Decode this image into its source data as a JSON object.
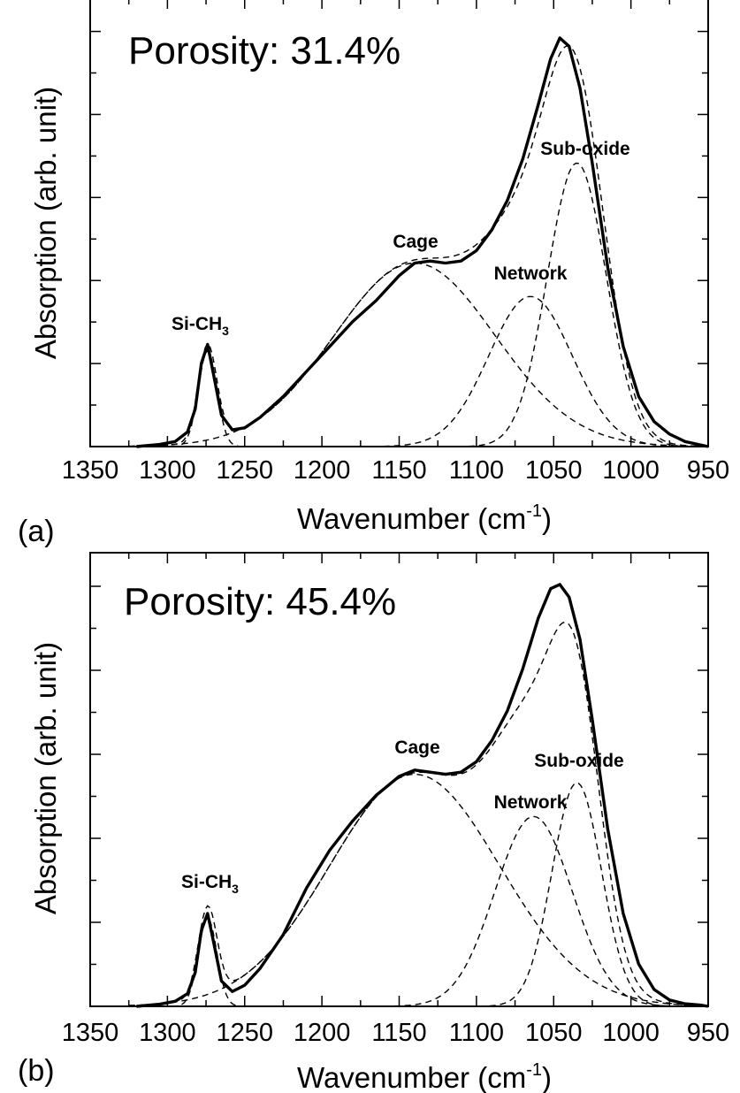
{
  "chart_data": [
    {
      "type": "line",
      "panel_label": "(a)",
      "annotation": "Porosity: 31.4%",
      "xlabel": "Wavenumber (cm",
      "xlabel_sup": "-1",
      "xlabel_close": ")",
      "ylabel": "Absorption (arb. unit)",
      "xlim": [
        1350,
        950
      ],
      "x_reversed": true,
      "x_ticks": [
        1350,
        1300,
        1250,
        1200,
        1150,
        1100,
        1050,
        1000,
        950
      ],
      "ylim": [
        0,
        1
      ],
      "peaks": {
        "si_ch3": {
          "label": "Si-CH",
          "sub": "3",
          "center": 1274,
          "height": 0.245
        },
        "cage": {
          "label": "Cage",
          "center": 1140,
          "height": 0.44
        },
        "network": {
          "label": "Network",
          "center": 1065,
          "height": 0.36
        },
        "sub_oxide": {
          "label": "Sub-oxide",
          "center": 1035,
          "height": 0.68
        }
      },
      "series": [
        {
          "name": "measured",
          "x": [
            1320,
            1305,
            1295,
            1287,
            1282,
            1278,
            1274,
            1270,
            1265,
            1258,
            1250,
            1240,
            1225,
            1210,
            1195,
            1180,
            1165,
            1150,
            1140,
            1130,
            1120,
            1110,
            1100,
            1090,
            1080,
            1070,
            1060,
            1052,
            1046,
            1040,
            1033,
            1025,
            1015,
            1005,
            995,
            985,
            975,
            965,
            955,
            950
          ],
          "y": [
            0.0,
            0.005,
            0.012,
            0.035,
            0.09,
            0.2,
            0.245,
            0.17,
            0.075,
            0.04,
            0.045,
            0.07,
            0.12,
            0.18,
            0.24,
            0.3,
            0.35,
            0.41,
            0.44,
            0.445,
            0.44,
            0.445,
            0.47,
            0.52,
            0.59,
            0.69,
            0.82,
            0.93,
            0.98,
            0.96,
            0.86,
            0.68,
            0.43,
            0.24,
            0.12,
            0.06,
            0.03,
            0.012,
            0.004,
            0.0
          ]
        },
        {
          "name": "Si-CH3",
          "center": 1274,
          "width": 6,
          "amplitude": 0.23
        },
        {
          "name": "Cage",
          "center": 1140,
          "width": 52,
          "amplitude": 0.44
        },
        {
          "name": "Network",
          "center": 1065,
          "width": 27,
          "amplitude": 0.36
        },
        {
          "name": "Sub-oxide",
          "center": 1035,
          "width": 19,
          "amplitude": 0.68
        }
      ]
    },
    {
      "type": "line",
      "panel_label": "(b)",
      "annotation": "Porosity: 45.4%",
      "xlabel": "Wavenumber (cm",
      "xlabel_sup": "-1",
      "xlabel_close": ")",
      "ylabel": "Absorption (arb. unit)",
      "xlim": [
        1350,
        950
      ],
      "x_reversed": true,
      "x_ticks": [
        1350,
        1300,
        1250,
        1200,
        1150,
        1100,
        1050,
        1000,
        950
      ],
      "ylim": [
        0,
        1
      ],
      "peaks": {
        "si_ch3": {
          "label": "Si-CH",
          "sub": "3",
          "center": 1274,
          "height": 0.22
        },
        "cage": {
          "label": "Cage",
          "center": 1140,
          "height": 0.55
        },
        "network": {
          "label": "Network",
          "center": 1063,
          "height": 0.45
        },
        "sub_oxide": {
          "label": "Sub-oxide",
          "center": 1035,
          "height": 0.53
        }
      },
      "series": [
        {
          "name": "measured",
          "x": [
            1320,
            1305,
            1295,
            1287,
            1282,
            1278,
            1274,
            1270,
            1265,
            1258,
            1250,
            1240,
            1225,
            1210,
            1195,
            1180,
            1165,
            1150,
            1140,
            1130,
            1120,
            1110,
            1100,
            1090,
            1080,
            1070,
            1060,
            1052,
            1046,
            1040,
            1033,
            1025,
            1015,
            1005,
            995,
            985,
            975,
            965,
            955,
            950
          ],
          "y": [
            0.0,
            0.005,
            0.012,
            0.03,
            0.08,
            0.18,
            0.22,
            0.15,
            0.06,
            0.035,
            0.05,
            0.09,
            0.17,
            0.28,
            0.37,
            0.44,
            0.5,
            0.545,
            0.56,
            0.555,
            0.55,
            0.555,
            0.58,
            0.63,
            0.7,
            0.8,
            0.92,
            0.99,
            1.0,
            0.97,
            0.87,
            0.68,
            0.42,
            0.22,
            0.1,
            0.04,
            0.015,
            0.006,
            0.003,
            0.0
          ]
        },
        {
          "name": "Si-CH3",
          "center": 1274,
          "width": 6,
          "amplitude": 0.21
        },
        {
          "name": "Cage",
          "center": 1140,
          "width": 55,
          "amplitude": 0.55
        },
        {
          "name": "Network",
          "center": 1063,
          "width": 25,
          "amplitude": 0.45
        },
        {
          "name": "Sub-oxide",
          "center": 1035,
          "width": 16,
          "amplitude": 0.53
        }
      ]
    }
  ]
}
